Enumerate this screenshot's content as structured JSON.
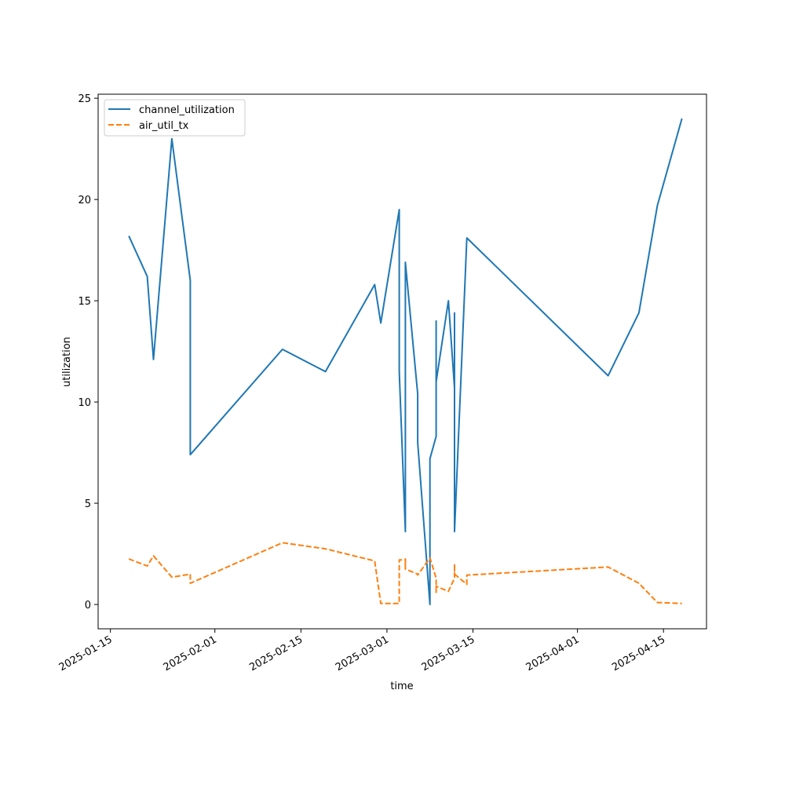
{
  "chart_data": {
    "type": "line",
    "title": "",
    "xlabel": "time",
    "ylabel": "utilization",
    "x_tick_labels": [
      "2025-01-15",
      "2025-02-01",
      "2025-02-15",
      "2025-03-01",
      "2025-03-15",
      "2025-04-01",
      "2025-04-15"
    ],
    "y_tick_labels": [
      "0",
      "5",
      "10",
      "15",
      "20",
      "25"
    ],
    "y_ticks": [
      0,
      5,
      10,
      15,
      20,
      25
    ],
    "xlim": [
      "2025-01-13",
      "2025-04-22"
    ],
    "ylim": [
      -1.2,
      25.2
    ],
    "grid": false,
    "legend_position": "top-left",
    "series": [
      {
        "name": "channel_utilization",
        "color": "#1f77b4",
        "dash": "solid",
        "points": [
          [
            "2025-01-18",
            18.2
          ],
          [
            "2025-01-21",
            16.2
          ],
          [
            "2025-01-22",
            12.1
          ],
          [
            "2025-01-25",
            23.0
          ],
          [
            "2025-01-28",
            16.0
          ],
          [
            "2025-01-28",
            7.4
          ],
          [
            "2025-02-12",
            12.6
          ],
          [
            "2025-02-19",
            11.5
          ],
          [
            "2025-02-27",
            15.8
          ],
          [
            "2025-02-28",
            13.9
          ],
          [
            "2025-03-03",
            19.5
          ],
          [
            "2025-03-03",
            11.5
          ],
          [
            "2025-03-04",
            3.6
          ],
          [
            "2025-03-04",
            9.8
          ],
          [
            "2025-03-04",
            6.5
          ],
          [
            "2025-03-04",
            16.9
          ],
          [
            "2025-03-06",
            10.4
          ],
          [
            "2025-03-06",
            8.0
          ],
          [
            "2025-03-08",
            0.0
          ],
          [
            "2025-03-08",
            7.2
          ],
          [
            "2025-03-09",
            8.3
          ],
          [
            "2025-03-09",
            14.0
          ],
          [
            "2025-03-09",
            11.0
          ],
          [
            "2025-03-11",
            15.0
          ],
          [
            "2025-03-12",
            10.7
          ],
          [
            "2025-03-12",
            14.4
          ],
          [
            "2025-03-12",
            3.6
          ],
          [
            "2025-03-14",
            18.1
          ],
          [
            "2025-04-06",
            11.3
          ],
          [
            "2025-04-11",
            14.4
          ],
          [
            "2025-04-14",
            19.7
          ],
          [
            "2025-04-18",
            24.0
          ]
        ]
      },
      {
        "name": "air_util_tx",
        "color": "#ff7f0e",
        "dash": "dashed",
        "points": [
          [
            "2025-01-18",
            2.25
          ],
          [
            "2025-01-21",
            1.9
          ],
          [
            "2025-01-22",
            2.4
          ],
          [
            "2025-01-25",
            1.35
          ],
          [
            "2025-01-28",
            1.5
          ],
          [
            "2025-01-28",
            1.05
          ],
          [
            "2025-02-12",
            3.05
          ],
          [
            "2025-02-19",
            2.75
          ],
          [
            "2025-02-27",
            2.15
          ],
          [
            "2025-02-28",
            0.05
          ],
          [
            "2025-03-03",
            0.05
          ],
          [
            "2025-03-03",
            2.2
          ],
          [
            "2025-03-04",
            2.2
          ],
          [
            "2025-03-04",
            1.8
          ],
          [
            "2025-03-04",
            2.25
          ],
          [
            "2025-03-04",
            1.75
          ],
          [
            "2025-03-06",
            1.5
          ],
          [
            "2025-03-06",
            1.45
          ],
          [
            "2025-03-08",
            2.3
          ],
          [
            "2025-03-09",
            1.3
          ],
          [
            "2025-03-09",
            0.6
          ],
          [
            "2025-03-09",
            0.9
          ],
          [
            "2025-03-11",
            0.65
          ],
          [
            "2025-03-12",
            1.3
          ],
          [
            "2025-03-12",
            2.0
          ],
          [
            "2025-03-12",
            1.5
          ],
          [
            "2025-03-14",
            1.0
          ],
          [
            "2025-03-14",
            1.45
          ],
          [
            "2025-04-06",
            1.85
          ],
          [
            "2025-04-11",
            1.05
          ],
          [
            "2025-04-14",
            0.1
          ],
          [
            "2025-04-18",
            0.05
          ]
        ]
      }
    ]
  }
}
